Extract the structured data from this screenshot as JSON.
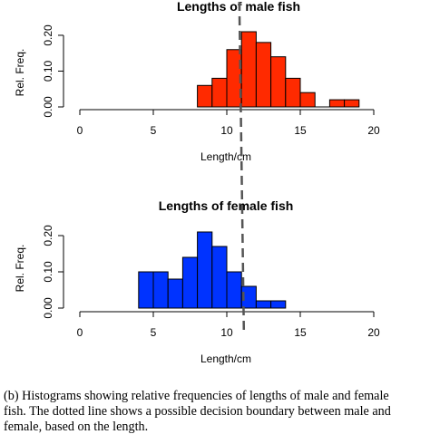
{
  "chart_data": [
    {
      "type": "bar",
      "title": "Lengths of male fish",
      "xlabel": "Length/cm",
      "ylabel": "Rel. Freq.",
      "xlim": [
        0,
        20
      ],
      "ylim": [
        0,
        0.21
      ],
      "xticks": [
        "0",
        "5",
        "10",
        "15",
        "20"
      ],
      "yticks": [
        "0.00",
        "0.10",
        "0.20"
      ],
      "bin_width": 1,
      "color": "#ff2a00",
      "bins": [
        {
          "x": 8,
          "value": 0.06
        },
        {
          "x": 9,
          "value": 0.08
        },
        {
          "x": 10,
          "value": 0.16
        },
        {
          "x": 11,
          "value": 0.21
        },
        {
          "x": 12,
          "value": 0.18
        },
        {
          "x": 13,
          "value": 0.14
        },
        {
          "x": 14,
          "value": 0.08
        },
        {
          "x": 15,
          "value": 0.04
        },
        {
          "x": 16,
          "value": 0.0
        },
        {
          "x": 17,
          "value": 0.02
        },
        {
          "x": 18,
          "value": 0.02
        }
      ]
    },
    {
      "type": "bar",
      "title": "Lengths of female fish",
      "xlabel": "Length/cm",
      "ylabel": "Rel. Freq.",
      "xlim": [
        0,
        20
      ],
      "ylim": [
        0,
        0.21
      ],
      "xticks": [
        "0",
        "5",
        "10",
        "15",
        "20"
      ],
      "yticks": [
        "0.00",
        "0.10",
        "0.20"
      ],
      "bin_width": 1,
      "color": "#0033ff",
      "bins": [
        {
          "x": 4,
          "value": 0.1
        },
        {
          "x": 5,
          "value": 0.1
        },
        {
          "x": 6,
          "value": 0.08
        },
        {
          "x": 7,
          "value": 0.14
        },
        {
          "x": 8,
          "value": 0.21
        },
        {
          "x": 9,
          "value": 0.17
        },
        {
          "x": 10,
          "value": 0.1
        },
        {
          "x": 11,
          "value": 0.06
        },
        {
          "x": 12,
          "value": 0.02
        },
        {
          "x": 13,
          "value": 0.02
        }
      ]
    }
  ],
  "decision_boundary": {
    "x": 11.1,
    "style": "dashed",
    "color": "#555555"
  },
  "caption": [
    "(b) Histograms showing relative frequencies of lengths of male and female",
    "fish. The dotted line shows a possible decision boundary between male and",
    "female, based on the length."
  ]
}
